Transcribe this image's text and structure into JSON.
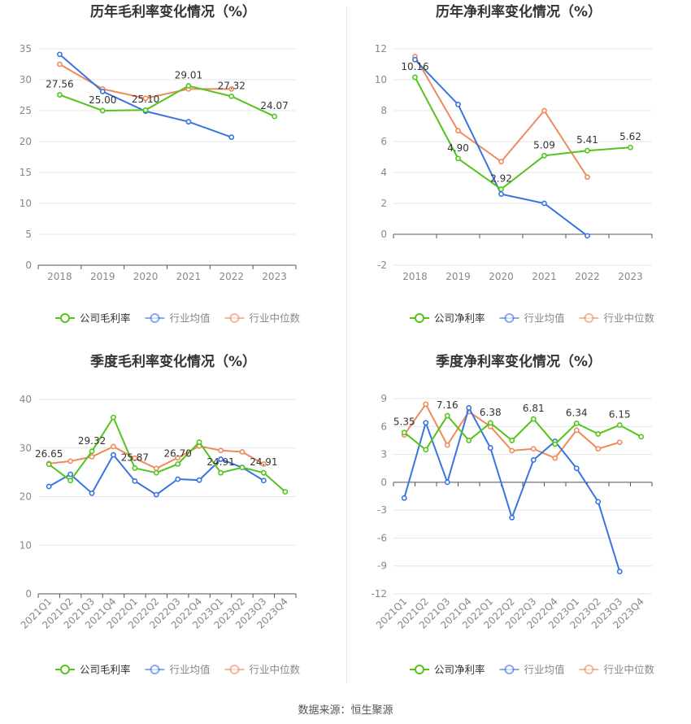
{
  "footer": {
    "text": "数据来源：恒生聚源"
  },
  "chart_data": [
    {
      "type": "line",
      "title": "历年毛利率变化情况（%）",
      "x": [
        "2018",
        "2019",
        "2020",
        "2021",
        "2022",
        "2023"
      ],
      "ylim": [
        0,
        35
      ],
      "yticks": [
        0,
        5,
        10,
        15,
        20,
        25,
        30,
        35
      ],
      "grid": true,
      "legend_position": "bottom",
      "label_series": 0,
      "series": [
        {
          "name": "公司毛利率",
          "color": "#52c41a",
          "values": [
            27.56,
            25.0,
            25.1,
            29.01,
            27.32,
            24.07
          ],
          "labels": [
            "27.56",
            "25.00",
            "25.10",
            "29.01",
            "27.32",
            "24.07"
          ]
        },
        {
          "name": "行业均值",
          "color": "#3875e0",
          "values": [
            34.1,
            28.1,
            24.9,
            23.2,
            20.7,
            null
          ]
        },
        {
          "name": "行业中位数",
          "color": "#f08a5d",
          "values": [
            32.5,
            28.5,
            27.0,
            28.5,
            28.5,
            null
          ]
        }
      ]
    },
    {
      "type": "line",
      "title": "历年净利率变化情况（%）",
      "x": [
        "2018",
        "2019",
        "2020",
        "2021",
        "2022",
        "2023"
      ],
      "ylim": [
        -2,
        12
      ],
      "yticks": [
        -2,
        0,
        2,
        4,
        6,
        8,
        10,
        12
      ],
      "grid": true,
      "legend_position": "bottom",
      "label_series": 0,
      "series": [
        {
          "name": "公司净利率",
          "color": "#52c41a",
          "values": [
            10.16,
            4.9,
            2.92,
            5.09,
            5.41,
            5.62
          ],
          "labels": [
            "10.16",
            "4.90",
            "2.92",
            "5.09",
            "5.41",
            "5.62"
          ]
        },
        {
          "name": "行业均值",
          "color": "#3875e0",
          "values": [
            11.3,
            8.4,
            2.6,
            2.0,
            -0.1,
            null
          ]
        },
        {
          "name": "行业中位数",
          "color": "#f08a5d",
          "values": [
            11.5,
            6.7,
            4.7,
            8.0,
            3.7,
            null
          ]
        }
      ]
    },
    {
      "type": "line",
      "title": "季度毛利率变化情况（%）",
      "x": [
        "2021Q1",
        "2021Q2",
        "2021Q3",
        "2021Q4",
        "2022Q1",
        "2022Q2",
        "2022Q3",
        "2022Q4",
        "2023Q1",
        "2023Q2",
        "2023Q3",
        "2023Q4"
      ],
      "ylim": [
        0,
        40
      ],
      "yticks": [
        0,
        10,
        20,
        30,
        40
      ],
      "grid": true,
      "legend_position": "bottom",
      "label_series": 0,
      "series": [
        {
          "name": "公司毛利率",
          "color": "#52c41a",
          "values": [
            26.65,
            23.3,
            29.32,
            36.3,
            25.87,
            24.9,
            26.7,
            31.2,
            24.91,
            26.0,
            24.91,
            21.0
          ],
          "labels": [
            "26.65",
            "",
            "29.32",
            "",
            "25.87",
            "",
            "26.70",
            "",
            "24.91",
            "",
            "24.91",
            ""
          ]
        },
        {
          "name": "行业均值",
          "color": "#3875e0",
          "values": [
            22.1,
            24.6,
            20.7,
            28.6,
            23.2,
            20.4,
            23.6,
            23.4,
            27.7,
            26.0,
            23.3,
            null
          ]
        },
        {
          "name": "行业中位数",
          "color": "#f08a5d",
          "values": [
            26.8,
            27.3,
            28.2,
            30.3,
            27.9,
            25.8,
            28.0,
            30.4,
            29.5,
            29.2,
            26.7,
            null
          ]
        }
      ]
    },
    {
      "type": "line",
      "title": "季度净利率变化情况（%）",
      "x": [
        "2021Q1",
        "2021Q2",
        "2021Q3",
        "2021Q4",
        "2022Q1",
        "2022Q2",
        "2022Q3",
        "2022Q4",
        "2023Q1",
        "2023Q2",
        "2023Q3",
        "2023Q4"
      ],
      "ylim": [
        -12,
        9
      ],
      "yticks": [
        -12,
        -9,
        -6,
        -3,
        0,
        3,
        6,
        9
      ],
      "grid": true,
      "legend_position": "bottom",
      "label_series": 0,
      "series": [
        {
          "name": "公司净利率",
          "color": "#52c41a",
          "values": [
            5.35,
            3.5,
            7.16,
            4.5,
            6.38,
            4.5,
            6.81,
            4.1,
            6.34,
            5.2,
            6.15,
            4.9
          ],
          "labels": [
            "5.35",
            "",
            "7.16",
            "",
            "6.38",
            "",
            "6.81",
            "",
            "6.34",
            "",
            "6.15",
            ""
          ]
        },
        {
          "name": "行业均值",
          "color": "#3875e0",
          "values": [
            -1.7,
            6.4,
            0.0,
            8.0,
            3.7,
            -3.8,
            2.4,
            4.4,
            1.5,
            -2.1,
            -9.6,
            null
          ]
        },
        {
          "name": "行业中位数",
          "color": "#f08a5d",
          "values": [
            5.1,
            8.4,
            4.0,
            7.6,
            6.0,
            3.4,
            3.6,
            2.6,
            5.6,
            3.6,
            4.3,
            null
          ]
        }
      ]
    }
  ]
}
